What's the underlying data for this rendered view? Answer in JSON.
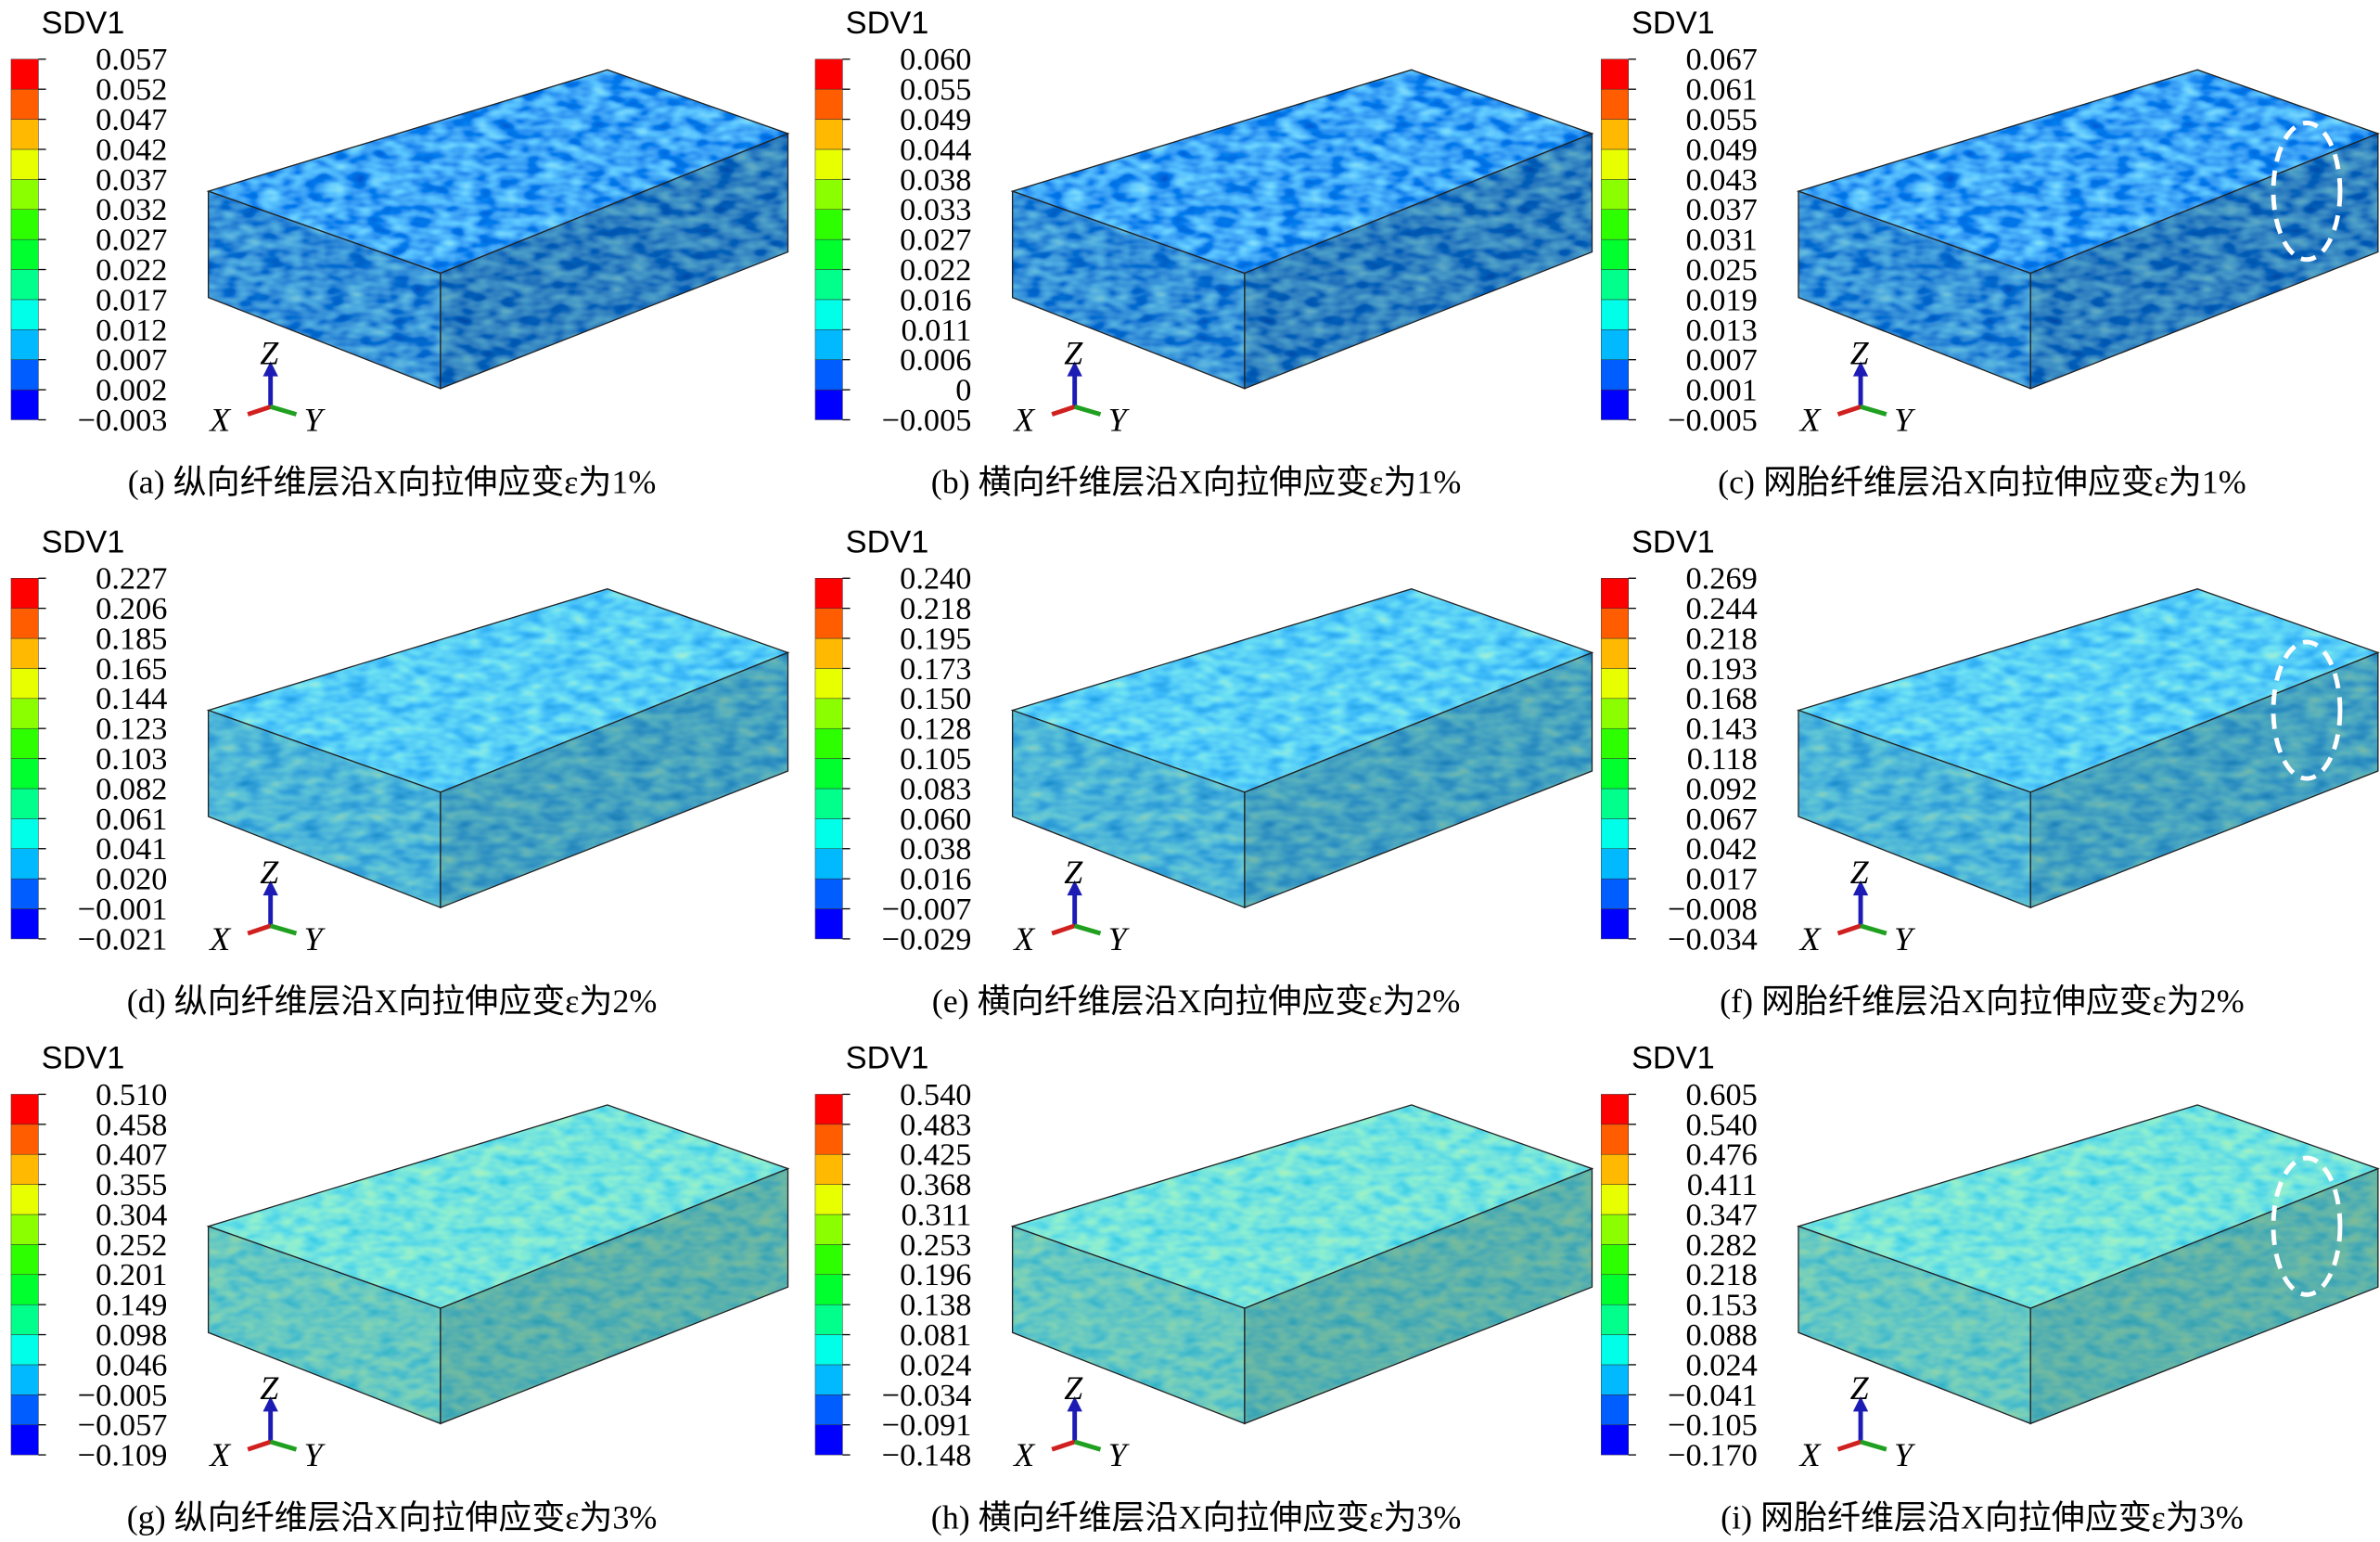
{
  "axis_labels": {
    "x": "X",
    "y": "Y",
    "z": "Z"
  },
  "panels": [
    {
      "legend_title": "SDV1",
      "legend_labels": [
        "0.057",
        "0.052",
        "0.047",
        "0.042",
        "0.037",
        "0.032",
        "0.027",
        "0.022",
        "0.017",
        "0.012",
        "0.007",
        "0.002",
        "−0.003"
      ],
      "caption": "(a) 纵向纤维层沿X向拉伸应变ε为1%"
    },
    {
      "legend_title": "SDV1",
      "legend_labels": [
        "0.060",
        "0.055",
        "0.049",
        "0.044",
        "0.038",
        "0.033",
        "0.027",
        "0.022",
        "0.016",
        "0.011",
        "0.006",
        "0",
        "−0.005"
      ],
      "caption": "(b) 横向纤维层沿X向拉伸应变ε为1%"
    },
    {
      "legend_title": "SDV1",
      "legend_labels": [
        "0.067",
        "0.061",
        "0.055",
        "0.049",
        "0.043",
        "0.037",
        "0.031",
        "0.025",
        "0.019",
        "0.013",
        "0.007",
        "0.001",
        "−0.005"
      ],
      "caption": "(c) 网胎纤维层沿X向拉伸应变ε为1%"
    },
    {
      "legend_title": "SDV1",
      "legend_labels": [
        "0.227",
        "0.206",
        "0.185",
        "0.165",
        "0.144",
        "0.123",
        "0.103",
        "0.082",
        "0.061",
        "0.041",
        "0.020",
        "−0.001",
        "−0.021"
      ],
      "caption": "(d) 纵向纤维层沿X向拉伸应变ε为2%"
    },
    {
      "legend_title": "SDV1",
      "legend_labels": [
        "0.240",
        "0.218",
        "0.195",
        "0.173",
        "0.150",
        "0.128",
        "0.105",
        "0.083",
        "0.060",
        "0.038",
        "0.016",
        "−0.007",
        "−0.029"
      ],
      "caption": "(e) 横向纤维层沿X向拉伸应变ε为2%"
    },
    {
      "legend_title": "SDV1",
      "legend_labels": [
        "0.269",
        "0.244",
        "0.218",
        "0.193",
        "0.168",
        "0.143",
        "0.118",
        "0.092",
        "0.067",
        "0.042",
        "0.017",
        "−0.008",
        "−0.034"
      ],
      "caption": "(f) 网胎纤维层沿X向拉伸应变ε为2%"
    },
    {
      "legend_title": "SDV1",
      "legend_labels": [
        "0.510",
        "0.458",
        "0.407",
        "0.355",
        "0.304",
        "0.252",
        "0.201",
        "0.149",
        "0.098",
        "0.046",
        "−0.005",
        "−0.057",
        "−0.109"
      ],
      "caption": "(g) 纵向纤维层沿X向拉伸应变ε为3%"
    },
    {
      "legend_title": "SDV1",
      "legend_labels": [
        "0.540",
        "0.483",
        "0.425",
        "0.368",
        "0.311",
        "0.253",
        "0.196",
        "0.138",
        "0.081",
        "0.024",
        "−0.034",
        "−0.091",
        "−0.148"
      ],
      "caption": "(h) 横向纤维层沿X向拉伸应变ε为3%"
    },
    {
      "legend_title": "SDV1",
      "legend_labels": [
        "0.605",
        "0.540",
        "0.476",
        "0.411",
        "0.347",
        "0.282",
        "0.218",
        "0.153",
        "0.088",
        "0.024",
        "−0.041",
        "−0.105",
        "−0.170"
      ],
      "caption": "(i) 网胎纤维层沿X向拉伸应变ε为3%"
    }
  ]
}
